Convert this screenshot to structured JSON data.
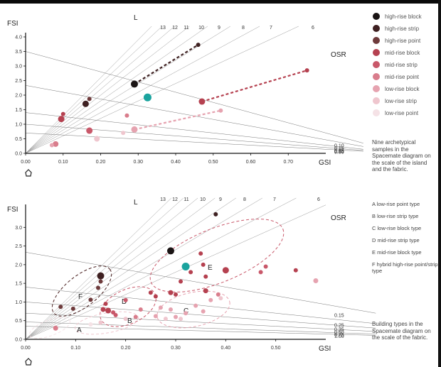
{
  "colors": {
    "high_block": "#1a1414",
    "high_strip": "#3e2021",
    "high_point": "#6e3a3b",
    "mid_block": "#b54150",
    "mid_strip": "#c9586a",
    "mid_point": "#d97d8c",
    "low_block": "#e6a3b0",
    "low_strip": "#efc6ce",
    "low_point": "#f5e2e6",
    "teal": "#1aa39e",
    "ray": "#9a9a9a",
    "osr": "#777777"
  },
  "legend": [
    {
      "label": "high-rise block",
      "color_key": "high_block"
    },
    {
      "label": "high-rise strip",
      "color_key": "high_strip"
    },
    {
      "label": "high-rise point",
      "color_key": "high_point"
    },
    {
      "label": "mid-rise block",
      "color_key": "mid_block"
    },
    {
      "label": "mid-rise strip",
      "color_key": "mid_strip"
    },
    {
      "label": "mid-rise point",
      "color_key": "mid_point"
    },
    {
      "label": "low-rise block",
      "color_key": "low_block"
    },
    {
      "label": "low-rise strip",
      "color_key": "low_strip"
    },
    {
      "label": "low-rise point",
      "color_key": "low_point"
    }
  ],
  "captions": {
    "top": "Nine archetypical samples in the Spacemate diagram on the scale of the island and the fabric.",
    "bottom": "Building types in the Spacemate diagram on the scale of the fabric."
  },
  "type_list": [
    "A  low-rise point type",
    "B  low-rise strip type",
    "C  low-rise block type",
    "D  mid-rise strip type",
    "E  mid-rise block type",
    "F  hybrid high-rise point/strip type"
  ],
  "chart_data": [
    {
      "type": "scatter",
      "xlabel": "GSI",
      "ylabel": "FSI",
      "xlim": [
        0,
        0.8
      ],
      "ylim": [
        0,
        4.0
      ],
      "x_ticks": [
        "0.00",
        "0.10",
        "0.20",
        "0.30",
        "0.40",
        "0.50",
        "0.60",
        "0.70"
      ],
      "y_ticks": [
        "0.0",
        "0.5",
        "1.0",
        "1.5",
        "2.0",
        "2.5",
        "3.0",
        "3.5",
        "4.0"
      ],
      "L_label": "L",
      "L_values": [
        13,
        12,
        11,
        10,
        9,
        8,
        7,
        6
      ],
      "osr_label": "OSR",
      "osr_values": [
        0.1,
        0.15,
        0.25,
        0.35,
        0.5
      ],
      "osr_labels": [
        "0.10",
        "0.15",
        "0.25",
        "0.35",
        "0.50"
      ],
      "series": [
        {
          "name": "high-rise",
          "color_key": "high_strip",
          "x": [
            0.29,
            0.46
          ],
          "y": [
            2.38,
            3.73
          ]
        },
        {
          "name": "mid-rise",
          "color_key": "mid_block",
          "x": [
            0.47,
            0.75
          ],
          "y": [
            1.78,
            2.85
          ]
        },
        {
          "name": "low-rise",
          "color_key": "low_block",
          "x": [
            0.29,
            0.52
          ],
          "y": [
            0.82,
            1.47
          ]
        }
      ],
      "points": [
        {
          "x": 0.29,
          "y": 2.38,
          "r": 5,
          "c": "high_block"
        },
        {
          "x": 0.46,
          "y": 3.73,
          "r": 3,
          "c": "high_strip"
        },
        {
          "x": 0.325,
          "y": 1.92,
          "r": 5.5,
          "c": "teal"
        },
        {
          "x": 0.17,
          "y": 1.87,
          "r": 3,
          "c": "high_point"
        },
        {
          "x": 0.16,
          "y": 1.7,
          "r": 4.5,
          "c": "high_strip"
        },
        {
          "x": 0.1,
          "y": 1.35,
          "r": 3,
          "c": "mid_block"
        },
        {
          "x": 0.095,
          "y": 1.18,
          "r": 4.5,
          "c": "mid_block"
        },
        {
          "x": 0.47,
          "y": 1.78,
          "r": 4.5,
          "c": "mid_block"
        },
        {
          "x": 0.75,
          "y": 2.85,
          "r": 3,
          "c": "mid_block"
        },
        {
          "x": 0.17,
          "y": 0.78,
          "r": 4.5,
          "c": "mid_strip"
        },
        {
          "x": 0.27,
          "y": 1.3,
          "r": 3,
          "c": "mid_point"
        },
        {
          "x": 0.29,
          "y": 0.82,
          "r": 4.5,
          "c": "low_block"
        },
        {
          "x": 0.52,
          "y": 1.47,
          "r": 3,
          "c": "low_block"
        },
        {
          "x": 0.19,
          "y": 0.5,
          "r": 4,
          "c": "low_strip"
        },
        {
          "x": 0.26,
          "y": 0.7,
          "r": 3,
          "c": "low_strip"
        },
        {
          "x": 0.08,
          "y": 0.32,
          "r": 4,
          "c": "mid_point"
        },
        {
          "x": 0.07,
          "y": 0.28,
          "r": 3,
          "c": "low_block"
        }
      ]
    },
    {
      "type": "scatter",
      "xlabel": "GSI",
      "ylabel": "FSI",
      "xlim": [
        0,
        0.6
      ],
      "ylim": [
        0,
        3.5
      ],
      "x_ticks": [
        "0.00",
        "0.10",
        "0.20",
        "0.30",
        "0.40",
        "0.50"
      ],
      "y_ticks": [
        "0.0",
        "0.5",
        "1.0",
        "1.5",
        "2.0",
        "2.5",
        "3.0"
      ],
      "L_label": "L",
      "L_values": [
        13,
        12,
        11,
        10,
        9,
        8,
        7,
        6
      ],
      "osr_label": "OSR",
      "osr_values": [
        0.15,
        0.25,
        0.35,
        0.5,
        0.75,
        1.0
      ],
      "osr_labels": [
        "0.15",
        "0.25",
        "0.35",
        "0.50",
        "0.75",
        "1.00"
      ],
      "cluster_labels": [
        "A",
        "B",
        "C",
        "D",
        "E",
        "F"
      ],
      "points": [
        {
          "x": 0.29,
          "y": 2.37,
          "r": 5,
          "c": "high_block"
        },
        {
          "x": 0.38,
          "y": 3.35,
          "r": 3,
          "c": "high_strip"
        },
        {
          "x": 0.32,
          "y": 1.95,
          "r": 5.5,
          "c": "teal"
        },
        {
          "x": 0.15,
          "y": 1.7,
          "r": 5,
          "c": "high_strip"
        },
        {
          "x": 0.15,
          "y": 1.55,
          "r": 3,
          "c": "high_point"
        },
        {
          "x": 0.145,
          "y": 1.38,
          "r": 3,
          "c": "high_point"
        },
        {
          "x": 0.13,
          "y": 1.06,
          "r": 3,
          "c": "high_point"
        },
        {
          "x": 0.095,
          "y": 0.82,
          "r": 3,
          "c": "high_point"
        },
        {
          "x": 0.07,
          "y": 0.87,
          "r": 3,
          "c": "high_point"
        },
        {
          "x": 0.16,
          "y": 0.95,
          "r": 3,
          "c": "mid_block"
        },
        {
          "x": 0.155,
          "y": 0.8,
          "r": 3.5,
          "c": "mid_block"
        },
        {
          "x": 0.165,
          "y": 0.77,
          "r": 4,
          "c": "mid_block"
        },
        {
          "x": 0.18,
          "y": 0.65,
          "r": 3,
          "c": "mid_strip"
        },
        {
          "x": 0.175,
          "y": 0.72,
          "r": 3,
          "c": "mid_strip"
        },
        {
          "x": 0.2,
          "y": 1.05,
          "r": 3,
          "c": "mid_strip"
        },
        {
          "x": 0.25,
          "y": 1.25,
          "r": 3,
          "c": "mid_block"
        },
        {
          "x": 0.26,
          "y": 1.15,
          "r": 3,
          "c": "mid_block"
        },
        {
          "x": 0.29,
          "y": 1.25,
          "r": 3.5,
          "c": "mid_block"
        },
        {
          "x": 0.3,
          "y": 1.2,
          "r": 3,
          "c": "mid_block"
        },
        {
          "x": 0.31,
          "y": 1.55,
          "r": 3,
          "c": "mid_block"
        },
        {
          "x": 0.33,
          "y": 1.8,
          "r": 3,
          "c": "mid_block"
        },
        {
          "x": 0.35,
          "y": 2.3,
          "r": 3,
          "c": "mid_block"
        },
        {
          "x": 0.355,
          "y": 2.0,
          "r": 3,
          "c": "mid_block"
        },
        {
          "x": 0.36,
          "y": 1.68,
          "r": 3,
          "c": "mid_block"
        },
        {
          "x": 0.36,
          "y": 1.3,
          "r": 3.5,
          "c": "mid_block"
        },
        {
          "x": 0.385,
          "y": 1.2,
          "r": 3,
          "c": "mid_point"
        },
        {
          "x": 0.4,
          "y": 1.85,
          "r": 4.5,
          "c": "mid_block"
        },
        {
          "x": 0.47,
          "y": 1.8,
          "r": 3,
          "c": "mid_strip"
        },
        {
          "x": 0.48,
          "y": 1.95,
          "r": 3,
          "c": "mid_strip"
        },
        {
          "x": 0.54,
          "y": 1.85,
          "r": 3,
          "c": "mid_block"
        },
        {
          "x": 0.58,
          "y": 1.57,
          "r": 3.5,
          "c": "low_block"
        },
        {
          "x": 0.22,
          "y": 0.6,
          "r": 3,
          "c": "mid_point"
        },
        {
          "x": 0.23,
          "y": 0.8,
          "r": 3,
          "c": "mid_point"
        },
        {
          "x": 0.26,
          "y": 0.62,
          "r": 3,
          "c": "low_block"
        },
        {
          "x": 0.27,
          "y": 0.85,
          "r": 3,
          "c": "low_block"
        },
        {
          "x": 0.29,
          "y": 0.8,
          "r": 3,
          "c": "low_block"
        },
        {
          "x": 0.3,
          "y": 0.6,
          "r": 3,
          "c": "low_block"
        },
        {
          "x": 0.32,
          "y": 0.7,
          "r": 3,
          "c": "low_block"
        },
        {
          "x": 0.34,
          "y": 0.9,
          "r": 3,
          "c": "low_block"
        },
        {
          "x": 0.355,
          "y": 0.75,
          "r": 3,
          "c": "low_block"
        },
        {
          "x": 0.37,
          "y": 1.05,
          "r": 3,
          "c": "low_block"
        },
        {
          "x": 0.39,
          "y": 1.1,
          "r": 3,
          "c": "low_strip"
        },
        {
          "x": 0.31,
          "y": 0.55,
          "r": 3,
          "c": "low_strip"
        },
        {
          "x": 0.28,
          "y": 0.55,
          "r": 3,
          "c": "low_strip"
        },
        {
          "x": 0.2,
          "y": 0.55,
          "r": 3,
          "c": "low_strip"
        },
        {
          "x": 0.06,
          "y": 0.3,
          "r": 3.5,
          "c": "mid_point"
        },
        {
          "x": 0.15,
          "y": 0.45,
          "r": 3,
          "c": "low_strip"
        },
        {
          "x": 0.13,
          "y": 0.4,
          "r": 3,
          "c": "low_point"
        }
      ]
    }
  ]
}
